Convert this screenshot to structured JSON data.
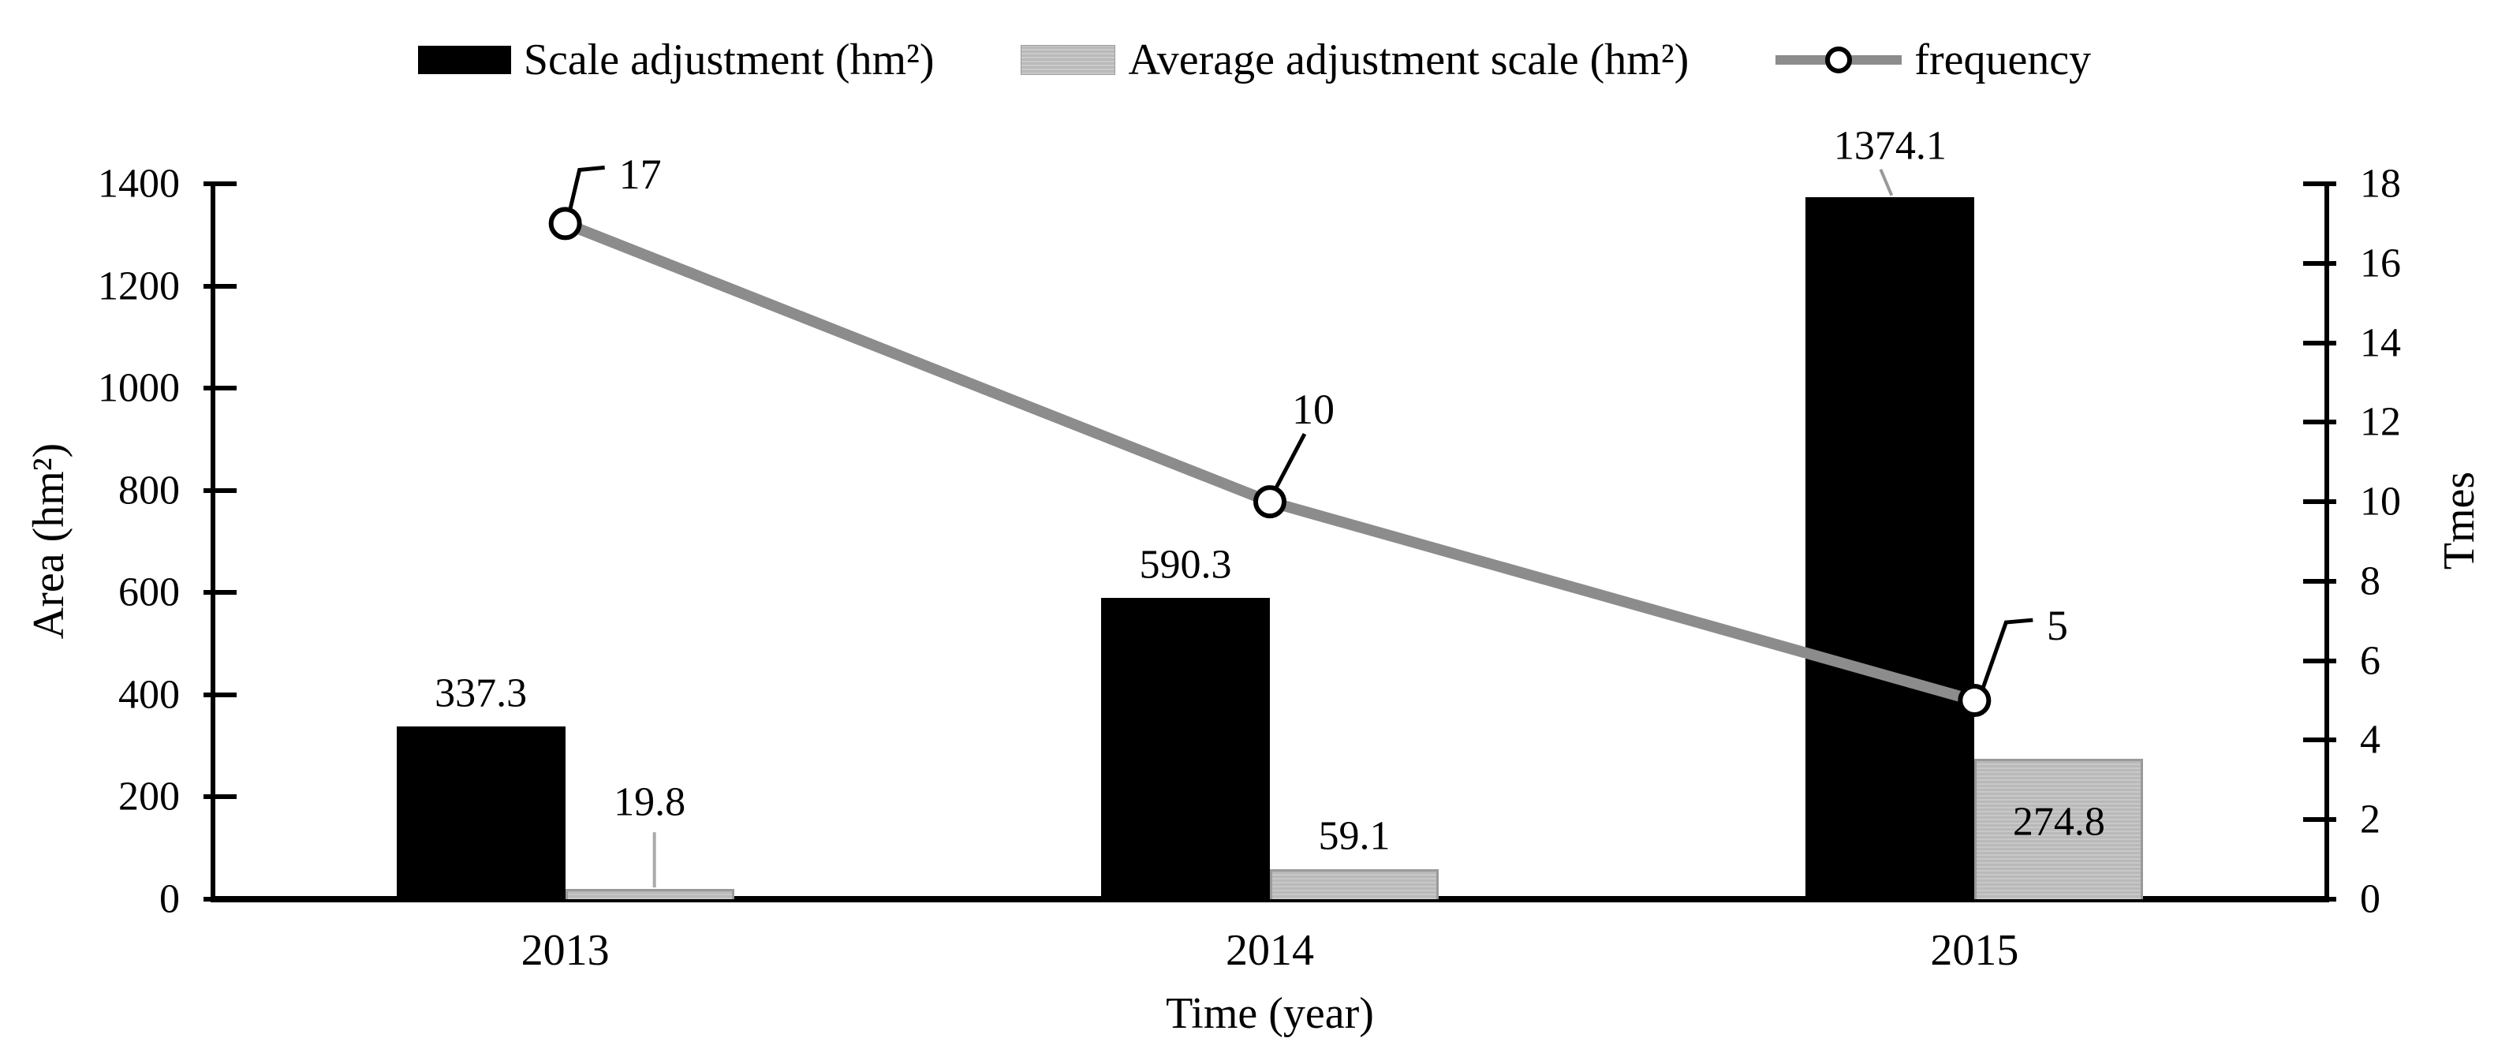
{
  "legend": {
    "items": [
      {
        "label": "Scale adjustment (hm²)",
        "swatch": "black-bar"
      },
      {
        "label": "Average adjustment scale (hm²)",
        "swatch": "gray-bar"
      },
      {
        "label": "frequency",
        "swatch": "line-marker"
      }
    ]
  },
  "chart_data": {
    "type": "combo",
    "categories": [
      "2013",
      "2014",
      "2015"
    ],
    "series": [
      {
        "name": "Scale adjustment (hm²)",
        "type": "bar",
        "axis": "left",
        "color": "#000000",
        "values": [
          337.3,
          590.3,
          1374.1
        ],
        "labels": [
          "337.3",
          "590.3",
          "1374.1"
        ],
        "label_pos": [
          "above",
          "above",
          "above-leader"
        ]
      },
      {
        "name": "Average adjustment scale (hm²)",
        "type": "bar",
        "axis": "left",
        "color": "#b9b9b9",
        "values": [
          19.8,
          59.1,
          274.8
        ],
        "labels": [
          "19.8",
          "59.1",
          "274.8"
        ],
        "label_pos": [
          "above-leader",
          "above",
          "inside"
        ]
      },
      {
        "name": "frequency",
        "type": "line",
        "axis": "right",
        "color": "#8c8c8c",
        "values": [
          17,
          10,
          5
        ],
        "labels": [
          "17",
          "10",
          "5"
        ]
      }
    ],
    "left_axis": {
      "title": "Area (hm²)",
      "min": 0,
      "max": 1400,
      "step": 200,
      "ticks": [
        "0",
        "200",
        "400",
        "600",
        "800",
        "1000",
        "1200",
        "1400"
      ]
    },
    "right_axis": {
      "title": "Tmes",
      "min": 0,
      "max": 18,
      "step": 2,
      "ticks": [
        "0",
        "2",
        "4",
        "6",
        "8",
        "10",
        "12",
        "14",
        "16",
        "18"
      ]
    },
    "x_axis": {
      "title": "Time (year)"
    },
    "legend_position": "top",
    "grid": false
  }
}
